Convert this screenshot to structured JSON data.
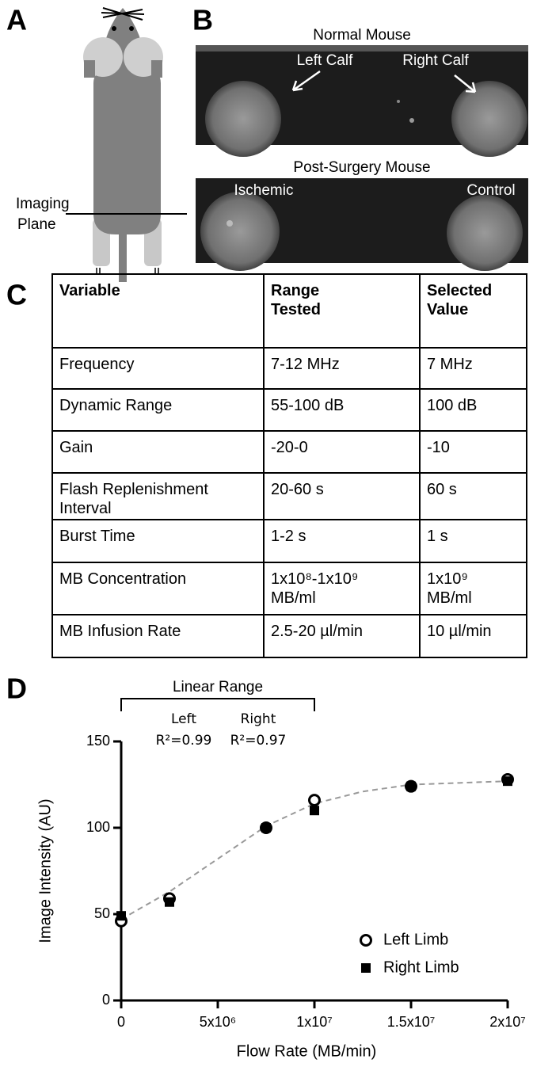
{
  "panel_a": {
    "label": "A",
    "plane_label": [
      "Imaging",
      "Plane"
    ]
  },
  "panel_b": {
    "label": "B",
    "top_title": "Normal Mouse",
    "left_calf": "Left Calf",
    "right_calf": "Right Calf",
    "bottom_title": "Post-Surgery Mouse",
    "ischemic": "Ischemic",
    "control": "Control"
  },
  "panel_c": {
    "label": "C",
    "table": {
      "header": [
        "Variable",
        "Range Tested",
        "Selected Value"
      ],
      "rows": [
        [
          "Frequency",
          "7-12 MHz",
          "7 MHz"
        ],
        [
          "Dynamic Range",
          "55-100 dB",
          "100 dB"
        ],
        [
          "Gain",
          "-20-0",
          "-10"
        ],
        [
          "Flash Replenishment Interval",
          "20-60 s",
          "60 s"
        ],
        [
          "Burst Time",
          "1-2 s",
          "1 s"
        ],
        [
          "MB Concentration",
          "1x10⁸-1x10⁹ MB/ml",
          "1x10⁹ MB/ml"
        ],
        [
          "MB Infusion Rate",
          "2.5-20 µl/min",
          "10 µl/min"
        ]
      ]
    }
  },
  "panel_d": {
    "label": "D"
  },
  "chart_data": {
    "type": "scatter",
    "x_label": "Flow Rate (MB/min)",
    "y_label": "Image Intensity (AU)",
    "x": [
      0,
      2500000,
      7500000,
      10000000,
      15000000,
      20000000
    ],
    "series": [
      {
        "name": "Left Limb",
        "color": "#000000",
        "marker": "open-circle",
        "values": [
          46,
          59,
          100,
          116,
          124,
          128
        ]
      },
      {
        "name": "Right Limb",
        "color": "#000000",
        "marker": "square",
        "values": [
          49,
          57,
          100,
          110,
          124,
          127
        ]
      }
    ],
    "curve": {
      "color": "#999999",
      "x": [
        0,
        2500000,
        5000000,
        7500000,
        10000000,
        12500000,
        15000000,
        17500000,
        20000000
      ],
      "values": [
        47,
        63,
        82,
        101,
        114,
        121,
        125,
        126,
        127
      ]
    },
    "linear_range": [
      0,
      10000000
    ],
    "annotations": {
      "range_label": "Linear Range",
      "left": "Left",
      "left_r2": "R²=0.99",
      "right": "Right",
      "right_r2": "R²=0.97"
    },
    "xlim": [
      0,
      20000000
    ],
    "xticks": [
      0,
      {
        "value": 5000000,
        "label": "5x10⁶"
      },
      {
        "value": 10000000,
        "label": "1x10⁷"
      },
      {
        "value": 15000000,
        "label": "1.5x10⁷"
      },
      {
        "value": 20000000,
        "label": "2x10⁷"
      }
    ],
    "ylim": [
      0,
      150
    ],
    "yticks": [
      0,
      50,
      100,
      150
    ],
    "legend": "lower-right"
  }
}
